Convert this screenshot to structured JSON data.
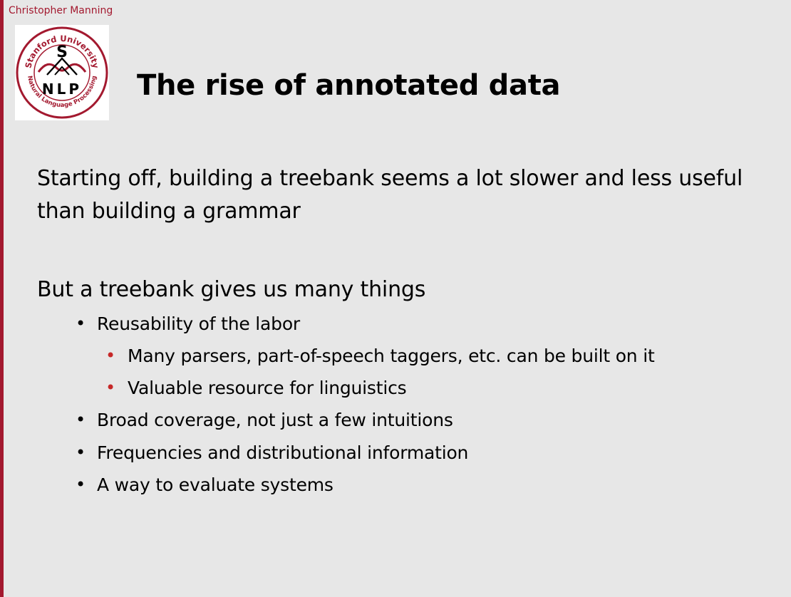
{
  "header": {
    "author": "Christopher Manning"
  },
  "logo": {
    "top_text": "Stanford University",
    "bottom_text": "Natural Language Processing",
    "center_letter": "S",
    "nlp_letters": "NLP"
  },
  "slide": {
    "title": "The rise of annotated data",
    "paragraph1_line1": "Starting off, building a treebank seems a lot slower and less useful",
    "paragraph1_line2": "than building a grammar",
    "paragraph2": "But a treebank gives us many things",
    "bullets": [
      {
        "text": "Reusability of the labor",
        "sub": [
          "Many parsers, part-of-speech taggers, etc. can be built on it",
          "Valuable resource for linguistics"
        ]
      },
      {
        "text": "Broad coverage, not just a few intuitions",
        "sub": []
      },
      {
        "text": "Frequencies and distributional information",
        "sub": []
      },
      {
        "text": "A way to evaluate systems",
        "sub": []
      }
    ]
  },
  "colors": {
    "accent": "#a3192f",
    "sub_bullet": "#c62828",
    "background": "#e7e7e7"
  }
}
